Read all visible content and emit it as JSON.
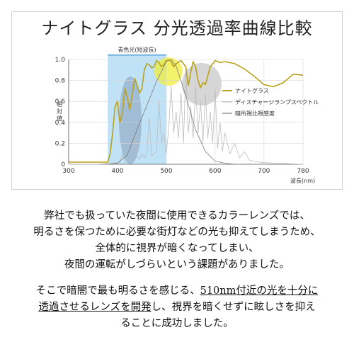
{
  "title": "ナイトグラス 分光透過率曲線比較",
  "chart_data": {
    "type": "line",
    "title": "ナイトグラス 分光透過率曲線比較",
    "xlabel": "波長(nm)",
    "ylabel": "相対値",
    "xlim": [
      300,
      780
    ],
    "ylim": [
      0,
      1.0
    ],
    "x_ticks": [
      "300",
      "400",
      "500",
      "600",
      "700",
      "780"
    ],
    "y_ticks": [
      "0",
      "0.2",
      "0.4",
      "0.6",
      "0.8",
      "1.0"
    ],
    "band": {
      "label": "青色光(短波長)",
      "from": 380,
      "to": 500,
      "color": "#bfe2f6"
    },
    "legend_position": "right",
    "series": [
      {
        "name": "ナイトグラス",
        "color": "#b9a21b",
        "x": [
          300,
          380,
          385,
          390,
          395,
          400,
          402,
          405,
          410,
          415,
          420,
          425,
          430,
          435,
          440,
          445,
          450,
          455,
          460,
          465,
          470,
          475,
          480,
          485,
          490,
          495,
          500,
          505,
          510,
          515,
          520,
          530,
          540,
          545,
          550,
          555,
          560,
          565,
          570,
          575,
          580,
          590,
          600,
          610,
          620,
          640,
          660,
          680,
          700,
          720,
          740,
          760,
          780
        ],
        "values": [
          0.02,
          0.02,
          0.1,
          0.3,
          0.55,
          0.6,
          0.5,
          0.4,
          0.48,
          0.72,
          0.64,
          0.52,
          0.65,
          0.82,
          0.76,
          0.68,
          0.72,
          0.9,
          0.96,
          0.95,
          0.92,
          0.93,
          0.99,
          0.97,
          0.93,
          0.95,
          0.99,
          0.995,
          0.98,
          0.93,
          0.96,
          0.99,
          0.93,
          0.75,
          0.88,
          0.98,
          0.93,
          0.8,
          0.73,
          0.78,
          0.76,
          0.93,
          0.99,
          0.97,
          0.98,
          0.96,
          0.91,
          0.84,
          0.76,
          0.74,
          0.78,
          0.86,
          0.85
        ]
      },
      {
        "name": "ディスチャージランプスペクトル",
        "color": "#bdbdbd",
        "x": [
          300,
          360,
          390,
          405,
          410,
          415,
          420,
          430,
          435,
          440,
          445,
          450,
          455,
          460,
          465,
          470,
          480,
          485,
          490,
          495,
          500,
          505,
          510,
          515,
          520,
          525,
          530,
          535,
          540,
          545,
          550,
          555,
          560,
          565,
          570,
          575,
          580,
          585,
          590,
          595,
          600,
          605,
          610,
          615,
          620,
          630,
          640,
          650,
          660,
          670,
          690,
          720,
          780
        ],
        "values": [
          0.0,
          0.0,
          0.01,
          0.02,
          0.1,
          0.02,
          0.03,
          0.06,
          0.28,
          0.07,
          0.05,
          0.1,
          0.06,
          0.1,
          0.45,
          0.08,
          0.12,
          0.6,
          0.2,
          0.3,
          0.1,
          0.35,
          0.75,
          0.3,
          0.5,
          0.25,
          0.68,
          0.2,
          0.9,
          0.3,
          0.55,
          0.25,
          0.75,
          0.3,
          0.6,
          0.2,
          0.68,
          0.25,
          0.5,
          0.2,
          0.72,
          0.15,
          0.4,
          0.12,
          0.3,
          0.1,
          0.2,
          0.06,
          0.12,
          0.04,
          0.02,
          0.01,
          0.0
        ]
      },
      {
        "name": "暗所視比視感度",
        "color": "#7d7d7d",
        "x": [
          380,
          400,
          420,
          440,
          460,
          480,
          500,
          510,
          520,
          540,
          560,
          580,
          600,
          620,
          640,
          660
        ],
        "values": [
          0.0,
          0.01,
          0.09,
          0.33,
          0.56,
          0.79,
          0.98,
          1.0,
          0.94,
          0.65,
          0.33,
          0.12,
          0.03,
          0.01,
          0.0,
          0.0
        ]
      }
    ]
  },
  "body": {
    "para1_line1": "弊社でも扱っていた夜間に使用できるカラーレンズでは、",
    "para1_line2": "明るさを保つために必要な街灯などの光も抑えてしまうため、",
    "para1_line3": "全体的に視界が暗くなってしまい、",
    "para1_line4": "夜間の運転がしづらいという課題がありました。",
    "para2_line1a": "そこで暗闇で最も明るさを感じる、",
    "para2_line1b": "510nm付近の光を十分に",
    "para2_line2a": "透過させるレンズを開発",
    "para2_line2b": "し、視界を暗くせずに眩しさを抑え",
    "para2_line3": "ることに成功しました。"
  }
}
